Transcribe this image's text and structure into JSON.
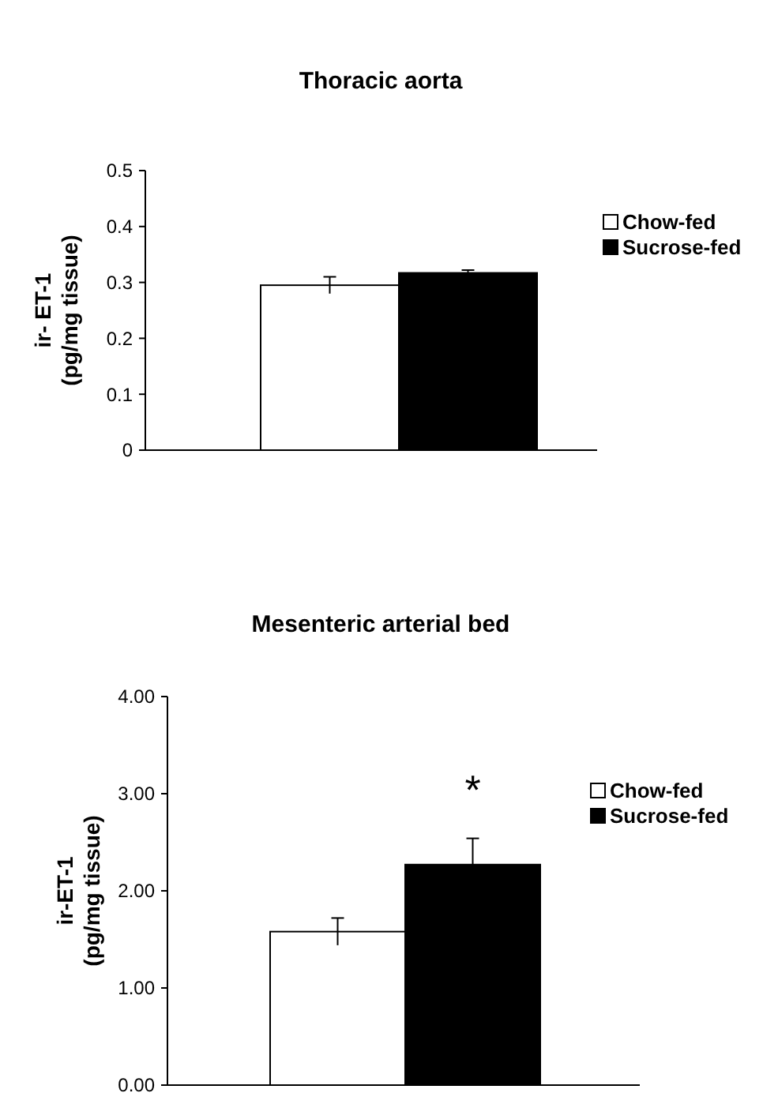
{
  "chart_data": [
    {
      "type": "bar",
      "title": "Thoracic aorta",
      "ylabel": "ir- ET-1\n(pg/mg tissue)",
      "categories": [
        null
      ],
      "series": [
        {
          "name": "Chow-fed",
          "color": "#ffffff",
          "values": [
            0.295
          ],
          "errors": [
            0.015
          ]
        },
        {
          "name": "Sucrose-fed",
          "color": "#000000",
          "values": [
            0.317
          ],
          "errors": [
            0.005
          ]
        }
      ],
      "ylim": [
        0,
        0.5
      ],
      "yticks": [
        0,
        0.1,
        0.2,
        0.3,
        0.4,
        0.5
      ],
      "grid": false,
      "legend": "right"
    },
    {
      "type": "bar",
      "title": "Mesenteric arterial bed",
      "ylabel": "ir-ET-1\n(pg/mg tissue)",
      "categories": [
        null
      ],
      "series": [
        {
          "name": "Chow-fed",
          "color": "#ffffff",
          "values": [
            1.58
          ],
          "errors": [
            0.14
          ]
        },
        {
          "name": "Sucrose-fed",
          "color": "#000000",
          "values": [
            2.27
          ],
          "errors": [
            0.27
          ]
        }
      ],
      "ylim": [
        0,
        4
      ],
      "yticks": [
        {
          "value": 0,
          "label": "0.00"
        },
        {
          "value": 1,
          "label": "1.00"
        },
        {
          "value": 2,
          "label": "2.00"
        },
        {
          "value": 3,
          "label": "3.00"
        },
        {
          "value": 4,
          "label": "4.00"
        }
      ],
      "annotations": [
        "*"
      ],
      "grid": false,
      "legend": "right"
    }
  ]
}
